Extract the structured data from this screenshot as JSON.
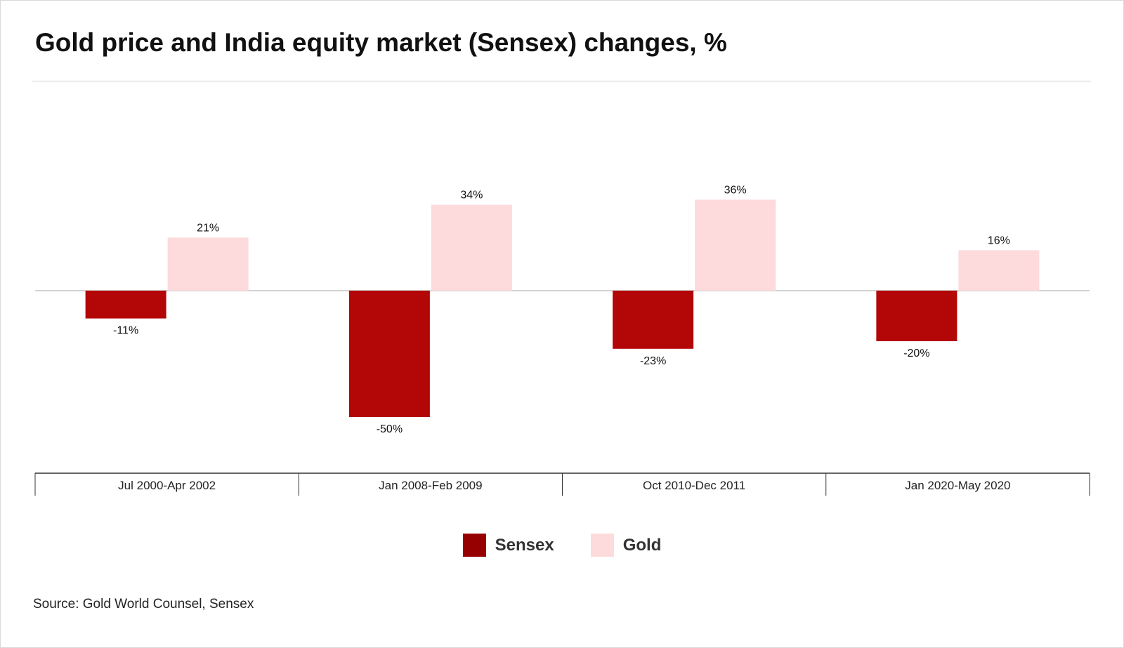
{
  "title": "Gold price and India equity market (Sensex) changes, %",
  "source": "Source: Gold World Counsel, Sensex",
  "colors": {
    "sensex": "#b30606",
    "gold": "#fddadc",
    "legend_sensex": "#960000"
  },
  "legend": [
    {
      "label": "Sensex"
    },
    {
      "label": "Gold"
    }
  ],
  "chart_data": {
    "type": "bar",
    "categories": [
      "Jul 2000-Apr 2002",
      "Jan 2008-Feb 2009",
      "Oct 2010-Dec 2011",
      "Jan 2020-May 2020"
    ],
    "series": [
      {
        "name": "Sensex",
        "values": [
          -11,
          -50,
          -23,
          -20
        ],
        "labels": [
          "-11%",
          "-50%",
          "-23%",
          "-20%"
        ]
      },
      {
        "name": "Gold",
        "values": [
          21,
          34,
          36,
          16
        ],
        "labels": [
          "21%",
          "34%",
          "36%",
          "16%"
        ]
      }
    ],
    "ylim": [
      -72,
      72
    ],
    "legend_position": "bottom",
    "grid": false
  }
}
